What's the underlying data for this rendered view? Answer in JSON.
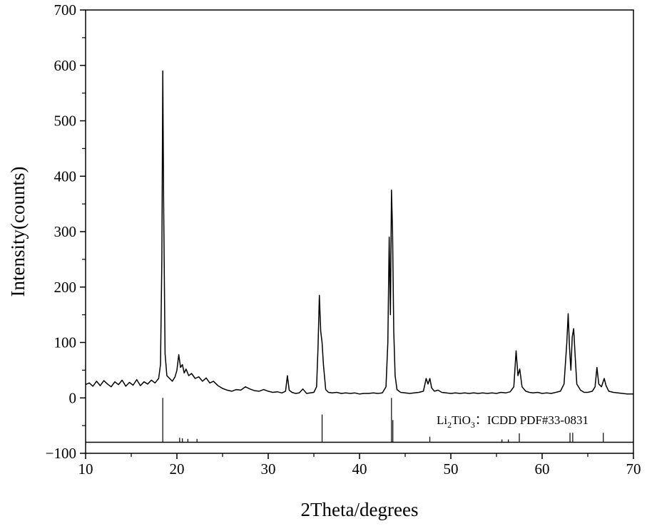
{
  "chart_data": {
    "type": "line",
    "title": "",
    "xlabel": "2Theta/degrees",
    "ylabel": "Intensity(counts)",
    "xlim": [
      10,
      70
    ],
    "ylim": [
      -100,
      700
    ],
    "x_ticks": [
      10,
      20,
      30,
      40,
      50,
      60,
      70
    ],
    "x_tick_labels": [
      "10",
      "20",
      "30",
      "40",
      "50",
      "60",
      "70"
    ],
    "y_ticks": [
      -100,
      0,
      100,
      200,
      300,
      400,
      500,
      600,
      700
    ],
    "y_tick_labels": [
      "−100",
      "0",
      "100",
      "200",
      "300",
      "400",
      "500",
      "600",
      "700"
    ],
    "grid": false,
    "line_color": "#000000",
    "annotation": {
      "chem_base": "Li",
      "chem_sub1": "2",
      "chem_mid": "TiO",
      "chem_sub2": "3",
      "reference": "：ICDD PDF#33-0831"
    },
    "series": [
      {
        "type": "line",
        "points": [
          [
            10.0,
            24
          ],
          [
            10.4,
            27
          ],
          [
            10.8,
            21
          ],
          [
            11.2,
            30
          ],
          [
            11.6,
            22
          ],
          [
            12.0,
            31
          ],
          [
            12.4,
            25
          ],
          [
            12.8,
            20
          ],
          [
            13.2,
            29
          ],
          [
            13.6,
            24
          ],
          [
            14.0,
            32
          ],
          [
            14.4,
            21
          ],
          [
            14.8,
            28
          ],
          [
            15.2,
            23
          ],
          [
            15.6,
            33
          ],
          [
            16.0,
            22
          ],
          [
            16.4,
            29
          ],
          [
            16.8,
            25
          ],
          [
            17.2,
            32
          ],
          [
            17.6,
            27
          ],
          [
            18.0,
            35
          ],
          [
            18.2,
            60
          ],
          [
            18.35,
            250
          ],
          [
            18.45,
            590
          ],
          [
            18.55,
            350
          ],
          [
            18.7,
            80
          ],
          [
            18.9,
            40
          ],
          [
            19.2,
            35
          ],
          [
            19.5,
            30
          ],
          [
            19.8,
            38
          ],
          [
            20.0,
            50
          ],
          [
            20.2,
            78
          ],
          [
            20.4,
            55
          ],
          [
            20.6,
            60
          ],
          [
            20.8,
            45
          ],
          [
            21.0,
            52
          ],
          [
            21.3,
            40
          ],
          [
            21.6,
            44
          ],
          [
            22.0,
            35
          ],
          [
            22.4,
            38
          ],
          [
            22.8,
            30
          ],
          [
            23.2,
            36
          ],
          [
            23.6,
            27
          ],
          [
            24.0,
            30
          ],
          [
            24.5,
            22
          ],
          [
            25.0,
            17
          ],
          [
            25.5,
            14
          ],
          [
            26.0,
            12
          ],
          [
            26.5,
            15
          ],
          [
            27.0,
            14
          ],
          [
            27.5,
            20
          ],
          [
            28.0,
            16
          ],
          [
            28.5,
            13
          ],
          [
            29.0,
            12
          ],
          [
            29.5,
            15
          ],
          [
            30.0,
            12
          ],
          [
            30.5,
            10
          ],
          [
            31.0,
            11
          ],
          [
            31.5,
            9
          ],
          [
            31.9,
            12
          ],
          [
            32.1,
            40
          ],
          [
            32.3,
            14
          ],
          [
            32.6,
            10
          ],
          [
            33.0,
            8
          ],
          [
            33.4,
            9
          ],
          [
            33.8,
            16
          ],
          [
            34.2,
            8
          ],
          [
            34.6,
            9
          ],
          [
            35.0,
            10
          ],
          [
            35.3,
            20
          ],
          [
            35.45,
            90
          ],
          [
            35.6,
            185
          ],
          [
            35.75,
            120
          ],
          [
            35.9,
            100
          ],
          [
            36.05,
            60
          ],
          [
            36.3,
            15
          ],
          [
            36.6,
            10
          ],
          [
            37.0,
            9
          ],
          [
            37.5,
            10
          ],
          [
            38.0,
            8
          ],
          [
            38.5,
            9
          ],
          [
            39.0,
            8
          ],
          [
            39.5,
            9
          ],
          [
            40.0,
            7
          ],
          [
            40.5,
            8
          ],
          [
            41.0,
            8
          ],
          [
            41.5,
            9
          ],
          [
            42.0,
            8
          ],
          [
            42.5,
            9
          ],
          [
            42.9,
            20
          ],
          [
            43.1,
            100
          ],
          [
            43.25,
            290
          ],
          [
            43.38,
            150
          ],
          [
            43.5,
            375
          ],
          [
            43.62,
            300
          ],
          [
            43.75,
            120
          ],
          [
            43.9,
            40
          ],
          [
            44.1,
            15
          ],
          [
            44.5,
            10
          ],
          [
            45.0,
            9
          ],
          [
            45.5,
            8
          ],
          [
            46.0,
            9
          ],
          [
            46.5,
            10
          ],
          [
            47.0,
            12
          ],
          [
            47.3,
            35
          ],
          [
            47.5,
            25
          ],
          [
            47.7,
            35
          ],
          [
            47.9,
            18
          ],
          [
            48.2,
            12
          ],
          [
            48.6,
            14
          ],
          [
            49.0,
            10
          ],
          [
            49.5,
            9
          ],
          [
            50.0,
            8
          ],
          [
            50.5,
            9
          ],
          [
            51.0,
            8
          ],
          [
            51.5,
            9
          ],
          [
            52.0,
            8
          ],
          [
            52.5,
            9
          ],
          [
            53.0,
            8
          ],
          [
            53.5,
            9
          ],
          [
            54.0,
            8
          ],
          [
            54.5,
            9
          ],
          [
            55.0,
            8
          ],
          [
            55.5,
            10
          ],
          [
            56.0,
            9
          ],
          [
            56.5,
            11
          ],
          [
            56.9,
            20
          ],
          [
            57.15,
            85
          ],
          [
            57.35,
            40
          ],
          [
            57.55,
            52
          ],
          [
            57.8,
            20
          ],
          [
            58.2,
            12
          ],
          [
            58.6,
            10
          ],
          [
            59.0,
            9
          ],
          [
            59.5,
            10
          ],
          [
            60.0,
            8
          ],
          [
            60.5,
            9
          ],
          [
            61.0,
            8
          ],
          [
            61.5,
            10
          ],
          [
            62.0,
            12
          ],
          [
            62.4,
            25
          ],
          [
            62.7,
            100
          ],
          [
            62.85,
            152
          ],
          [
            63.0,
            90
          ],
          [
            63.15,
            50
          ],
          [
            63.3,
            110
          ],
          [
            63.45,
            125
          ],
          [
            63.6,
            80
          ],
          [
            63.8,
            25
          ],
          [
            64.2,
            14
          ],
          [
            64.6,
            10
          ],
          [
            65.0,
            10
          ],
          [
            65.5,
            12
          ],
          [
            65.8,
            20
          ],
          [
            66.0,
            55
          ],
          [
            66.2,
            25
          ],
          [
            66.5,
            20
          ],
          [
            66.8,
            35
          ],
          [
            67.0,
            22
          ],
          [
            67.3,
            12
          ],
          [
            67.8,
            10
          ],
          [
            68.3,
            9
          ],
          [
            68.8,
            8
          ],
          [
            69.3,
            7
          ],
          [
            70.0,
            7
          ]
        ]
      },
      {
        "type": "reference-sticks",
        "baseline": -80,
        "sticks": [
          [
            18.45,
            0
          ],
          [
            20.3,
            -72
          ],
          [
            20.6,
            -73
          ],
          [
            21.2,
            -74
          ],
          [
            22.2,
            -74
          ],
          [
            35.9,
            -30
          ],
          [
            43.5,
            0
          ],
          [
            43.65,
            -40
          ],
          [
            47.7,
            -70
          ],
          [
            55.6,
            -75
          ],
          [
            56.3,
            -75
          ],
          [
            57.5,
            -64
          ],
          [
            63.05,
            -63
          ],
          [
            63.35,
            -63
          ],
          [
            66.7,
            -63
          ]
        ]
      }
    ]
  }
}
